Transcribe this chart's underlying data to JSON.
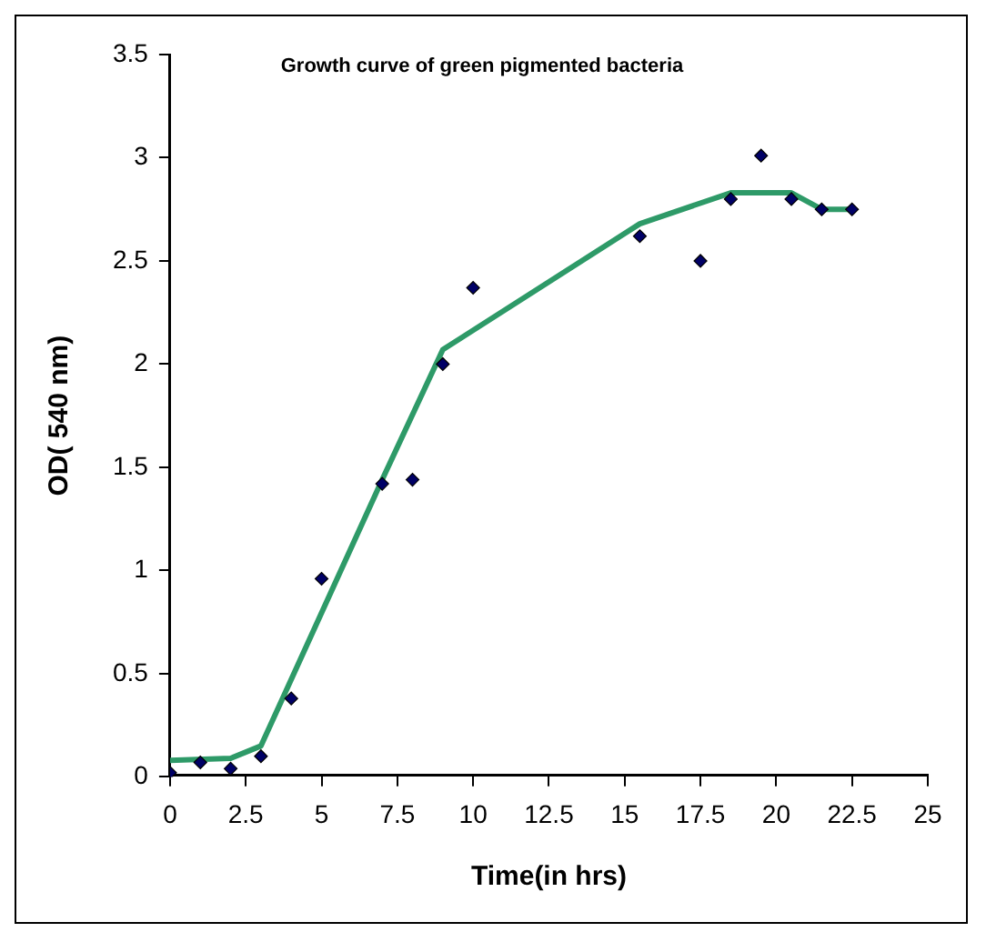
{
  "chart_data": {
    "type": "scatter",
    "title": "Growth curve of green pigmented bacteria",
    "xlabel": "Time(in hrs)",
    "ylabel": "OD( 540 nm)",
    "xlim": [
      0,
      25
    ],
    "xticks": [
      0,
      2.5,
      5,
      7.5,
      10,
      12.5,
      15,
      17.5,
      20,
      22.5,
      25
    ],
    "ylim": [
      0,
      3.5
    ],
    "yticks": [
      0,
      0.5,
      1,
      1.5,
      2,
      2.5,
      3,
      3.5
    ],
    "grid": false,
    "legend": false,
    "series": [
      {
        "type": "scatter",
        "marker": "diamond",
        "color": "#000066",
        "x": [
          0,
          1,
          2,
          3,
          4,
          5,
          7,
          8,
          9,
          10,
          15.5,
          17.5,
          18.5,
          19.5,
          20.5,
          21.5,
          22.5
        ],
        "values": [
          0.02,
          0.07,
          0.04,
          0.1,
          0.38,
          0.96,
          1.42,
          1.44,
          2.0,
          2.37,
          2.62,
          2.5,
          2.8,
          3.01,
          2.8,
          2.75,
          2.75
        ]
      },
      {
        "type": "line",
        "marker": "none",
        "line_style": "solid",
        "color": "#2e9a68",
        "x": [
          0,
          2,
          3,
          7,
          9,
          15.5,
          18.5,
          20.5,
          21.5,
          22.5
        ],
        "values": [
          0.08,
          0.09,
          0.15,
          1.44,
          2.07,
          2.68,
          2.83,
          2.83,
          2.75,
          2.75
        ]
      }
    ]
  }
}
